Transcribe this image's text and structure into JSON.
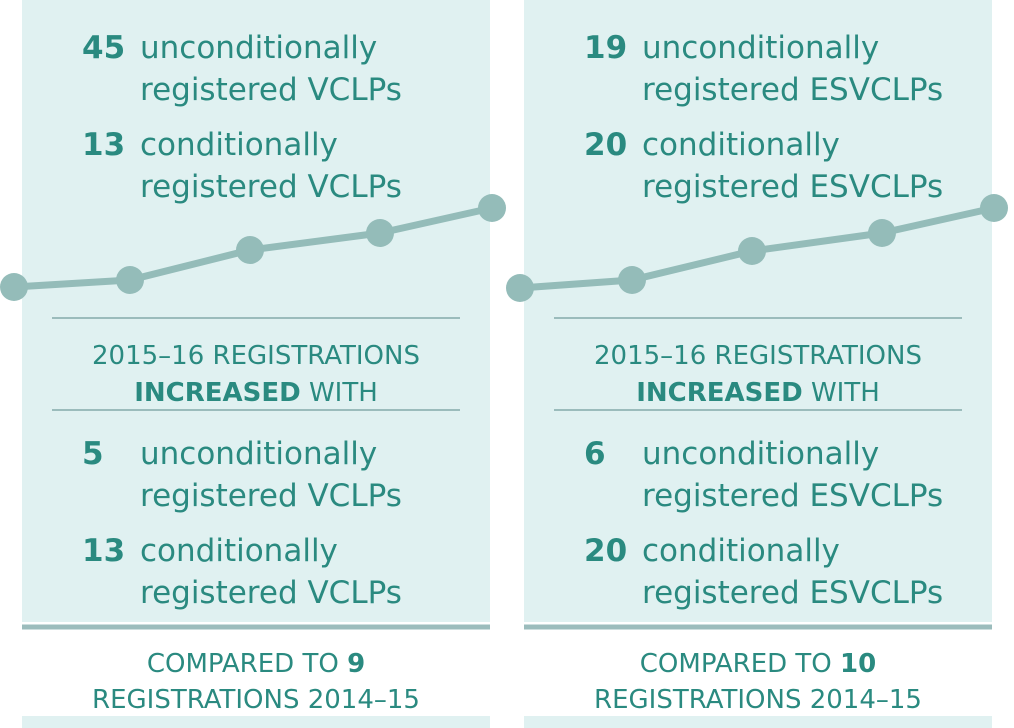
{
  "panels": [
    {
      "items_top": [
        {
          "number": 45,
          "line1": "unconditionally",
          "line2": "registered VCLPs"
        },
        {
          "number": 13,
          "line1": "conditionally",
          "line2": "registered VCLPs"
        }
      ],
      "heading": {
        "line1": "2015–16 REGISTRATIONS",
        "bold": "INCREASED",
        "rest": "WITH"
      },
      "items_bottom": [
        {
          "number": 5,
          "line1": "unconditionally",
          "line2": "registered VCLPs"
        },
        {
          "number": 13,
          "line1": "conditionally",
          "line2": "registered VCLPs"
        }
      ],
      "footer": {
        "prefix": "COMPARED TO",
        "number": 9,
        "line2": "REGISTRATIONS 2014–15"
      }
    },
    {
      "items_top": [
        {
          "number": 19,
          "line1": "unconditionally",
          "line2": "registered ESVCLPs"
        },
        {
          "number": 20,
          "line1": "conditionally",
          "line2": "registered ESVCLPs"
        }
      ],
      "heading": {
        "line1": "2015–16 REGISTRATIONS",
        "bold": "INCREASED",
        "rest": "WITH"
      },
      "items_bottom": [
        {
          "number": 6,
          "line1": "unconditionally",
          "line2": "registered ESVCLPs"
        },
        {
          "number": 20,
          "line1": "conditionally",
          "line2": "registered ESVCLPs"
        }
      ],
      "footer": {
        "prefix": "COMPARED TO",
        "number": 10,
        "line2": "REGISTRATIONS 2014–15"
      }
    }
  ]
}
